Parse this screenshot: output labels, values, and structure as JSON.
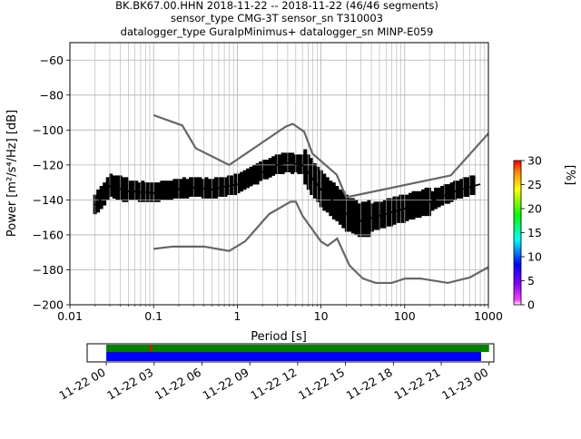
{
  "chart_data": {
    "type": "heatmap",
    "title_lines": [
      "BK.BK67.00.HHN   2018-11-22 -- 2018-11-22  (46/46 segments)",
      "sensor_type CMG-3T sensor_sn T310003",
      "datalogger_type GuralpMinimus+ datalogger_sn MINP-E059"
    ],
    "xlabel": "Period [s]",
    "ylabel": "Power [m²/s⁴/Hz] [dB]",
    "x_scale": "log",
    "xlim": [
      0.01,
      1000
    ],
    "ylim": [
      -200,
      -50
    ],
    "x_ticks": [
      0.01,
      0.1,
      1,
      10,
      100,
      1000
    ],
    "x_tick_labels": [
      "0.01",
      "0.1",
      "1",
      "10",
      "100",
      "1000"
    ],
    "y_ticks": [
      -200,
      -180,
      -160,
      -140,
      -120,
      -100,
      -80,
      -60
    ],
    "y_tick_labels": [
      "−200",
      "−180",
      "−160",
      "−140",
      "−120",
      "−100",
      "−80",
      "−60"
    ],
    "grid": true,
    "colorbar": {
      "label": "[%]",
      "range": [
        0,
        30
      ],
      "ticks": [
        0,
        5,
        10,
        15,
        20,
        25,
        30
      ],
      "tick_labels": [
        "0",
        "5",
        "10",
        "15",
        "20",
        "25",
        "30"
      ]
    },
    "noise_models": [
      {
        "points": [
          [
            0.1,
            -91.5
          ],
          [
            0.22,
            -97.4
          ],
          [
            0.32,
            -110.5
          ],
          [
            0.8,
            -120
          ],
          [
            3.8,
            -98
          ],
          [
            4.6,
            -96.5
          ],
          [
            6.3,
            -101
          ],
          [
            7.9,
            -113.5
          ],
          [
            15.4,
            -125.6
          ],
          [
            20,
            -138.5
          ],
          [
            354.8,
            -126
          ],
          [
            10000,
            -48.5
          ]
        ]
      },
      {
        "points": [
          [
            0.1,
            -168
          ],
          [
            0.17,
            -166.7
          ],
          [
            0.4,
            -166.7
          ],
          [
            0.8,
            -169.2
          ],
          [
            1.24,
            -163.7
          ],
          [
            2.4,
            -148.1
          ],
          [
            4.3,
            -141.1
          ],
          [
            5,
            -141
          ],
          [
            6,
            -149
          ],
          [
            10,
            -163.8
          ],
          [
            12,
            -166.2
          ],
          [
            15.6,
            -162.1
          ],
          [
            21.9,
            -177.5
          ],
          [
            31.6,
            -185
          ],
          [
            45,
            -187.5
          ],
          [
            70,
            -187.5
          ],
          [
            101,
            -185
          ],
          [
            154,
            -185
          ],
          [
            328,
            -187.5
          ],
          [
            600,
            -184.4
          ],
          [
            10000,
            -151.5
          ]
        ]
      }
    ],
    "mean_curve": {
      "points": [
        [
          0.02,
          -143
        ],
        [
          0.025,
          -138
        ],
        [
          0.03,
          -132
        ],
        [
          0.05,
          -135
        ],
        [
          0.1,
          -136
        ],
        [
          0.2,
          -134
        ],
        [
          0.3,
          -133
        ],
        [
          0.5,
          -134
        ],
        [
          1,
          -131
        ],
        [
          2,
          -124
        ],
        [
          3,
          -120
        ],
        [
          4,
          -119
        ],
        [
          6,
          -120
        ],
        [
          8,
          -128
        ],
        [
          10,
          -134
        ],
        [
          15,
          -142
        ],
        [
          20,
          -148
        ],
        [
          30,
          -152
        ],
        [
          50,
          -149
        ],
        [
          100,
          -145
        ],
        [
          200,
          -141
        ],
        [
          400,
          -135
        ],
        [
          800,
          -131
        ]
      ]
    },
    "time_axis": {
      "tick_labels": [
        "11-22 00",
        "11-22 03",
        "11-22 06",
        "11-22 09",
        "11-22 12",
        "11-22 15",
        "11-22 18",
        "11-22 21",
        "11-23 00"
      ],
      "range_hours": [
        -2.4,
        48.6
      ],
      "data_hours": [
        0,
        48
      ],
      "gap_hours": [
        0,
        47
      ],
      "marker_hours": [
        5.6
      ],
      "bar_colors": {
        "data": "#008000",
        "gap": "#0000ff",
        "marker": "#ff0000"
      }
    }
  }
}
